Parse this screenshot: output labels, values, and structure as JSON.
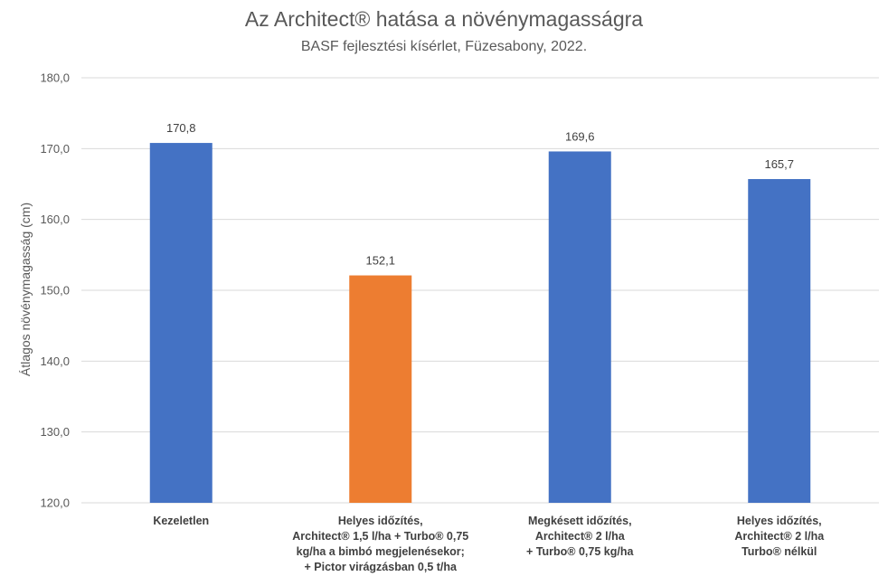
{
  "chart_data": {
    "type": "bar",
    "title": "Az Architect® hatása a növénymagasságra",
    "subtitle": "BASF fejlesztési kísérlet, Füzesabony, 2022.",
    "ylabel": "Átlagos növénymagasság (cm)",
    "xlabel": "",
    "ylim": [
      120,
      180
    ],
    "yticks": [
      "120,0",
      "130,0",
      "140,0",
      "150,0",
      "160,0",
      "170,0",
      "180,0"
    ],
    "grid": true,
    "legend": "none",
    "categories": [
      "Kezeletlen",
      "Helyes időzítés,\nArchitect® 1,5 l/ha + Turbo® 0,75\nkg/ha a bimbó megjelenésekor;\n+ Pictor virágzásban 0,5 t/ha",
      "Megkésett időzítés,\nArchitect® 2 l/ha\n+ Turbo® 0,75 kg/ha",
      "Helyes időzítés,\nArchitect® 2 l/ha\nTurbo® nélkül"
    ],
    "values": [
      170.8,
      152.1,
      169.6,
      165.7
    ],
    "data_labels": [
      "170,8",
      "152,1",
      "169,6",
      "165,7"
    ],
    "colors": [
      "#4472c4",
      "#ed7d31",
      "#4472c4",
      "#4472c4"
    ]
  }
}
